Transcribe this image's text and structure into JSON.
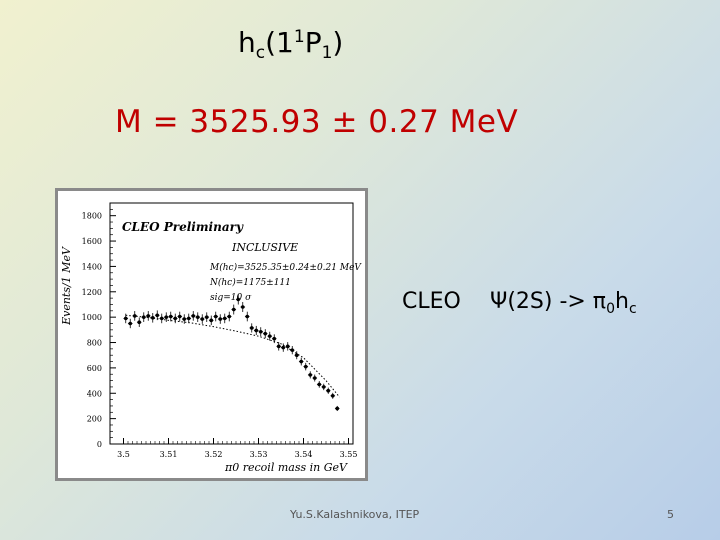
{
  "slide": {
    "title_main": "h",
    "title_sub_c": "c",
    "title_paren_open": "(1",
    "title_sup": "1",
    "title_p": "P",
    "title_sub_1": "1",
    "title_paren_close": ")",
    "mass_line": "M = 3525.93 ± 0.27 MeV",
    "cleo_label": "CLEO",
    "process_psi": "Ψ(2S) -> π",
    "process_sub0": "0",
    "process_h": "h",
    "process_subc": "c",
    "footer": "Yu.S.Kalashnikova, ITEP",
    "page_number": "5"
  },
  "chart_data": {
    "type": "scatter",
    "ylabel": "Events/1 MeV",
    "xlabel": "π0 recoil mass in GeV",
    "x_ticks": [
      "3.5",
      "3.51",
      "3.52",
      "3.53",
      "3.54",
      "3.55"
    ],
    "y_ticks": [
      "0",
      "200",
      "400",
      "600",
      "800",
      "1000",
      "1200",
      "1400",
      "1600",
      "1800"
    ],
    "xlim": [
      3.497,
      3.551
    ],
    "ylim": [
      0,
      1900
    ],
    "annotations": {
      "preliminary": "CLEO Preliminary",
      "inclusive": "INCLUSIVE",
      "mass_fit": "M(hc)=3525.35±0.24±0.21 MeV",
      "yield": "N(hc)=1175±111",
      "significance": "sig=10 σ"
    },
    "series": [
      {
        "values": [
          [
            3.5005,
            990
          ],
          [
            3.5015,
            950
          ],
          [
            3.5025,
            1010
          ],
          [
            3.5035,
            960
          ],
          [
            3.5045,
            1000
          ],
          [
            3.5055,
            1010
          ],
          [
            3.5065,
            995
          ],
          [
            3.5075,
            1015
          ],
          [
            3.5085,
            990
          ],
          [
            3.5095,
            1000
          ],
          [
            3.5105,
            1005
          ],
          [
            3.5115,
            990
          ],
          [
            3.5125,
            1005
          ],
          [
            3.5135,
            985
          ],
          [
            3.5145,
            990
          ],
          [
            3.5155,
            1010
          ],
          [
            3.5165,
            1000
          ],
          [
            3.5175,
            985
          ],
          [
            3.5185,
            1000
          ],
          [
            3.5195,
            975
          ],
          [
            3.5205,
            1005
          ],
          [
            3.5215,
            985
          ],
          [
            3.5225,
            990
          ],
          [
            3.5235,
            1005
          ],
          [
            3.5245,
            1060
          ],
          [
            3.5255,
            1140
          ],
          [
            3.5265,
            1080
          ],
          [
            3.5275,
            1005
          ],
          [
            3.5285,
            915
          ],
          [
            3.5295,
            895
          ],
          [
            3.5305,
            885
          ],
          [
            3.5315,
            870
          ],
          [
            3.5325,
            850
          ],
          [
            3.5335,
            830
          ],
          [
            3.5345,
            770
          ],
          [
            3.5355,
            760
          ],
          [
            3.5365,
            770
          ],
          [
            3.5375,
            740
          ],
          [
            3.5385,
            700
          ],
          [
            3.5395,
            650
          ],
          [
            3.5405,
            610
          ],
          [
            3.5415,
            545
          ],
          [
            3.5425,
            520
          ],
          [
            3.5435,
            470
          ],
          [
            3.5445,
            450
          ],
          [
            3.5455,
            420
          ],
          [
            3.5465,
            380
          ],
          [
            3.5475,
            280
          ]
        ]
      },
      {
        "name": "background",
        "values": [
          [
            3.5005,
            1015
          ],
          [
            3.505,
            1000
          ],
          [
            3.51,
            975
          ],
          [
            3.515,
            955
          ],
          [
            3.52,
            925
          ],
          [
            3.525,
            890
          ],
          [
            3.53,
            850
          ],
          [
            3.535,
            790
          ],
          [
            3.54,
            680
          ],
          [
            3.545,
            500
          ],
          [
            3.548,
            370
          ]
        ]
      }
    ]
  }
}
